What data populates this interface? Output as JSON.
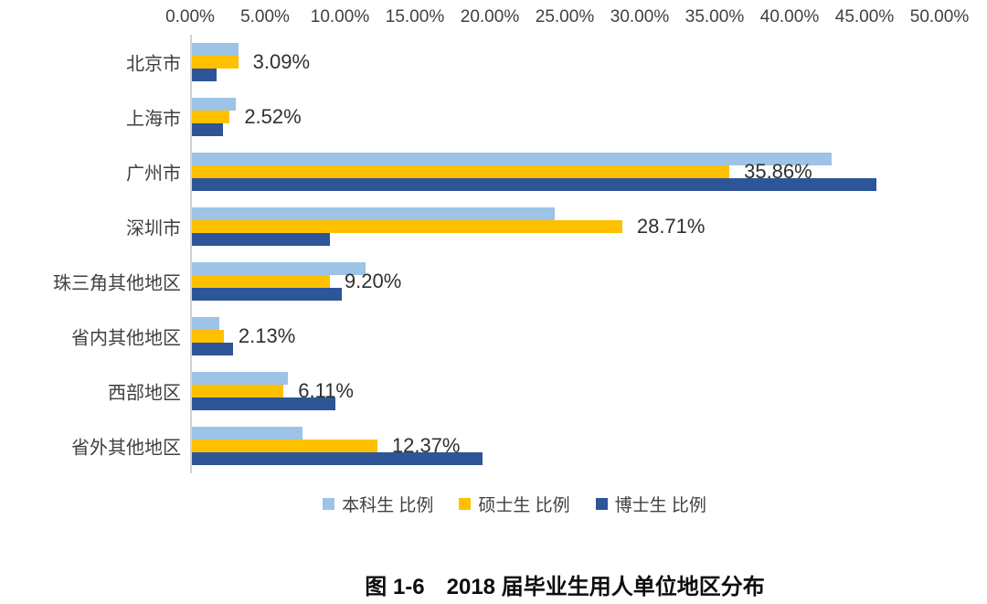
{
  "chart_data": {
    "type": "bar",
    "orientation": "horizontal",
    "title": "图 1-6　2018 届毕业生用人单位地区分布",
    "categories": [
      "北京市",
      "上海市",
      "广州市",
      "深圳市",
      "珠三角其他地区",
      "省内其他地区",
      "西部地区",
      "省外其他地区"
    ],
    "series": [
      {
        "name": "本科生 比例",
        "color": "#9DC3E6",
        "values": [
          3.1,
          2.95,
          42.7,
          24.2,
          11.6,
          1.8,
          6.4,
          7.4
        ]
      },
      {
        "name": "硕士生 比例",
        "color": "#FFC000",
        "values": [
          3.09,
          2.52,
          35.86,
          28.71,
          9.2,
          2.13,
          6.11,
          12.37
        ],
        "labels": [
          "3.09%",
          "2.52%",
          "35.86%",
          "28.71%",
          "9.20%",
          "2.13%",
          "6.11%",
          "12.37%"
        ]
      },
      {
        "name": "博士生 比例",
        "color": "#2E5597",
        "values": [
          1.65,
          2.1,
          45.7,
          9.2,
          10.0,
          2.75,
          9.6,
          19.4
        ]
      }
    ],
    "x_ticks": [
      "0.00%",
      "5.00%",
      "10.00%",
      "15.00%",
      "20.00%",
      "25.00%",
      "30.00%",
      "35.00%",
      "40.00%",
      "45.00%",
      "50.00%"
    ],
    "xlim": [
      0,
      50
    ],
    "grid": false,
    "legend_position": "bottom",
    "axis_line_color": "#d2d2d2",
    "text_color": "#404040"
  }
}
